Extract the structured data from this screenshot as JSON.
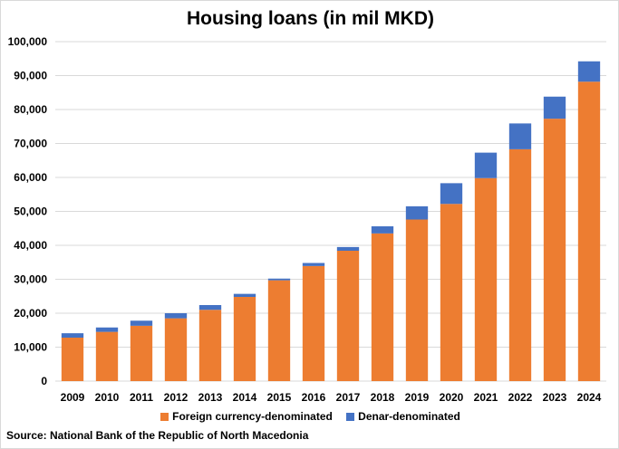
{
  "chart_data": {
    "type": "bar",
    "stacked": true,
    "title": "Housing loans (in mil MKD)",
    "xlabel": "",
    "ylabel": "",
    "categories": [
      "2009",
      "2010",
      "2011",
      "2012",
      "2013",
      "2014",
      "2015",
      "2016",
      "2017",
      "2018",
      "2019",
      "2020",
      "2021",
      "2022",
      "2023",
      "2024"
    ],
    "series": [
      {
        "name": "Foreign currency-denominated",
        "color": "#ED7D31",
        "values": [
          12800,
          14500,
          16300,
          18500,
          21000,
          24800,
          29700,
          33900,
          38400,
          43500,
          47600,
          52200,
          59800,
          68300,
          77300,
          88200
        ]
      },
      {
        "name": "Denar-denominated",
        "color": "#4472C4",
        "values": [
          1300,
          1300,
          1500,
          1500,
          1400,
          900,
          500,
          900,
          1100,
          2100,
          3900,
          6100,
          7500,
          7600,
          6500,
          6000
        ]
      }
    ],
    "ylim": [
      0,
      100000
    ],
    "yticks": [
      "0",
      "10,000",
      "20,000",
      "30,000",
      "40,000",
      "50,000",
      "60,000",
      "70,000",
      "80,000",
      "90,000",
      "100,000"
    ],
    "grid": true,
    "legend_position": "bottom"
  },
  "source": "Source: National Bank of the Republic of North Macedonia"
}
